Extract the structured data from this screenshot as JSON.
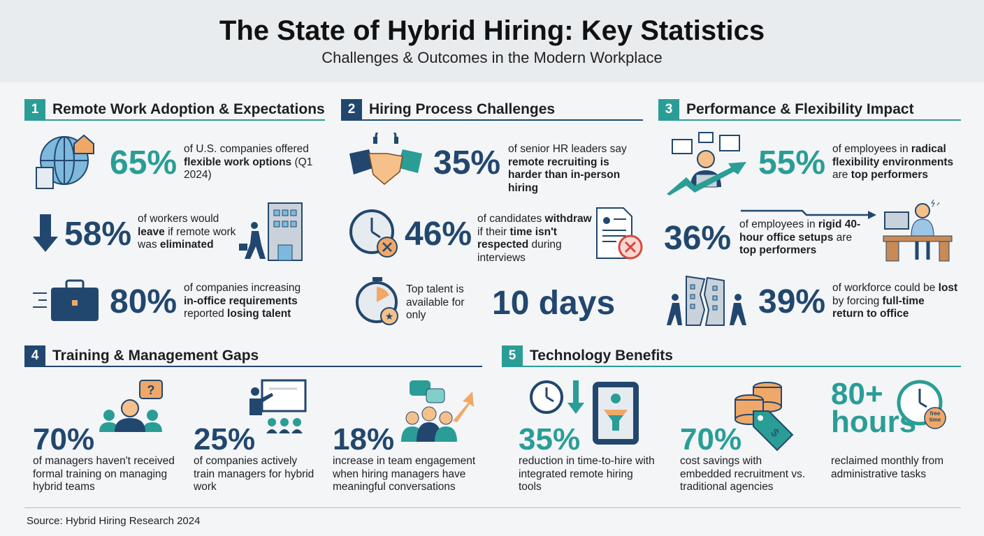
{
  "header": {
    "title": "The State of Hybrid Hiring: Key Statistics",
    "subtitle": "Challenges & Outcomes in the Modern Workplace"
  },
  "colors": {
    "teal": "#2a9d96",
    "navy": "#22476e",
    "accent": "#f0a868"
  },
  "sections": [
    {
      "num": "1",
      "label": "Remote Work Adoption & Expectations",
      "stats": [
        {
          "value": "65%",
          "icon": "globe-home-icon",
          "desc": [
            {
              "t": "of U.S. companies offered "
            },
            {
              "t": "flexible work options",
              "b": true
            },
            {
              "t": " (Q1 2024)"
            }
          ]
        },
        {
          "value": "58%",
          "icon": "down-arrow-icon",
          "desc": [
            {
              "t": "of workers would "
            },
            {
              "t": "leave",
              "b": true
            },
            {
              "t": " if remote work was "
            },
            {
              "t": "eliminated",
              "b": true
            }
          ]
        },
        {
          "value": "80%",
          "icon": "briefcase-icon",
          "desc": [
            {
              "t": "of companies increasing "
            },
            {
              "t": "in-office requirements",
              "b": true
            },
            {
              "t": " reported "
            },
            {
              "t": "losing talent",
              "b": true
            }
          ]
        }
      ]
    },
    {
      "num": "2",
      "label": "Hiring Process Challenges",
      "stats": [
        {
          "value": "35%",
          "icon": "handshake-icon",
          "desc": [
            {
              "t": "of senior HR leaders say "
            },
            {
              "t": "remote recruiting is harder than in-person hiring",
              "b": true
            }
          ]
        },
        {
          "value": "46%",
          "icon": "clock-cancel-icon",
          "desc": [
            {
              "t": "of candidates "
            },
            {
              "t": "withdraw",
              "b": true
            },
            {
              "t": " if their "
            },
            {
              "t": "time isn't respected",
              "b": true
            },
            {
              "t": " during interviews"
            }
          ]
        },
        {
          "value": "10 days",
          "icon": "stopwatch-icon",
          "desc": [
            {
              "t": "Top talent is available for only"
            }
          ]
        }
      ]
    },
    {
      "num": "3",
      "label": "Performance & Flexibility Impact",
      "stats": [
        {
          "value": "55%",
          "icon": "performer-icon",
          "desc": [
            {
              "t": "of employees in "
            },
            {
              "t": "radical flexibility environments",
              "b": true
            },
            {
              "t": " are "
            },
            {
              "t": "top performers",
              "b": true
            }
          ]
        },
        {
          "value": "36%",
          "icon": "stressed-worker-icon",
          "desc": [
            {
              "t": "of employees in "
            },
            {
              "t": "rigid 40-hour office setups",
              "b": true
            },
            {
              "t": " are "
            },
            {
              "t": "top performers",
              "b": true
            }
          ]
        },
        {
          "value": "39%",
          "icon": "cracked-building-icon",
          "desc": [
            {
              "t": "of workforce could be "
            },
            {
              "t": "lost",
              "b": true
            },
            {
              "t": " by forcing "
            },
            {
              "t": "full-time return to office",
              "b": true
            }
          ]
        }
      ]
    },
    {
      "num": "4",
      "label": "Training & Management Gaps",
      "stats": [
        {
          "value": "70%",
          "icon": "manager-question-icon",
          "desc": [
            {
              "t": "of managers haven't received formal training on managing hybrid teams"
            }
          ]
        },
        {
          "value": "25%",
          "icon": "presentation-icon",
          "desc": [
            {
              "t": "of companies actively train managers for hybrid work"
            }
          ]
        },
        {
          "value": "18%",
          "icon": "team-engagement-icon",
          "desc": [
            {
              "t": "increase in team engagement when hiring managers have meaningful conversations"
            }
          ]
        }
      ]
    },
    {
      "num": "5",
      "label": "Technology Benefits",
      "stats": [
        {
          "value": "35%",
          "icon": "tablet-funnel-icon",
          "desc": [
            {
              "t": "reduction in time-to-hire with integrated remote hiring tools"
            }
          ]
        },
        {
          "value": "70%",
          "icon": "coins-tag-icon",
          "desc": [
            {
              "t": "cost savings with embedded recruitment vs. traditional agencies"
            }
          ]
        },
        {
          "value": "80+ hours",
          "icon": "clock-free-time-icon",
          "badge": "free time",
          "desc": [
            {
              "t": "reclaimed monthly from administrative tasks"
            }
          ]
        }
      ]
    }
  ],
  "footer": {
    "source": "Source: Hybrid Hiring Research 2024"
  }
}
